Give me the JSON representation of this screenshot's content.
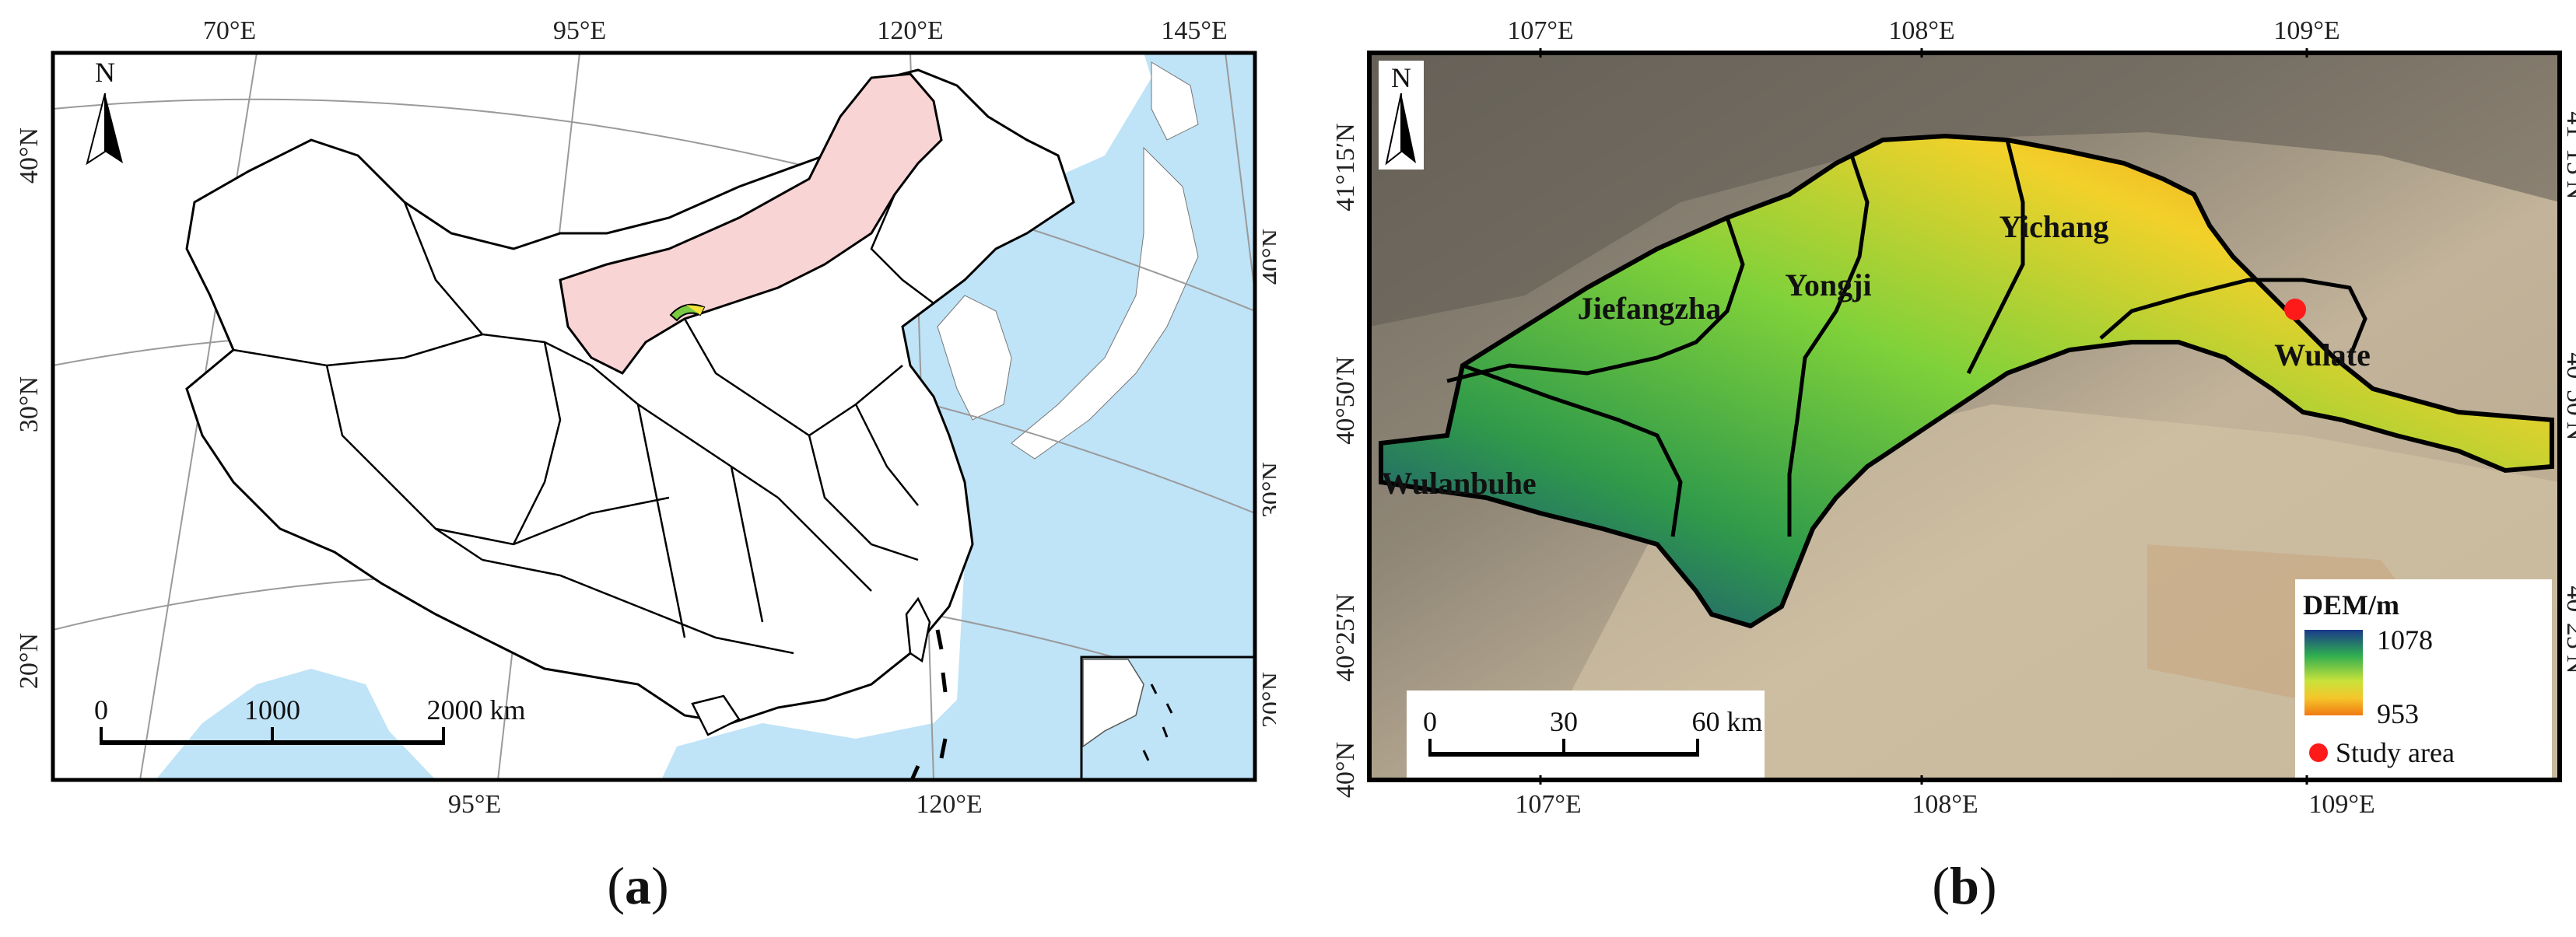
{
  "map_a": {
    "lon_top": [
      "70°E",
      "95°E",
      "120°E",
      "145°E"
    ],
    "lon_bottom": [
      "95°E",
      "120°E"
    ],
    "lat_left": [
      "40°N",
      "30°N",
      "20°N"
    ],
    "lat_right": [
      "40°N",
      "30°N",
      "20°N"
    ],
    "north_label": "N",
    "scale_ticks": [
      "0",
      "1000",
      "2000 km"
    ],
    "colors": {
      "sea": "#bfe3f7",
      "province_highlight": "#f9d4d4",
      "border": "#000000"
    }
  },
  "map_b": {
    "lon_top": [
      "107°E",
      "108°E",
      "109°E"
    ],
    "lon_bottom": [
      "107°E",
      "108°E",
      "109°E"
    ],
    "lat_left": [
      "41°15′N",
      "40°50′N",
      "40°25′N",
      "40°N"
    ],
    "lat_right": [
      "41°15′N",
      "40°50′N",
      "40°25′N"
    ],
    "north_label": "N",
    "regions": [
      "Jiefangzha",
      "Yongji",
      "Yichang",
      "Wulate",
      "Wulanbuhe"
    ],
    "scale_ticks": [
      "0",
      "30",
      "60 km"
    ],
    "legend": {
      "title": "DEM/m",
      "max": "1078",
      "min": "953",
      "study_area": "Study area"
    },
    "colors": {
      "dem_high": "#1a3a8a",
      "dem_mid": "#3fb24a",
      "dem_low": "#f07a14",
      "study_point": "#ff1a1a"
    }
  },
  "captions": {
    "a": "a",
    "b": "b"
  }
}
